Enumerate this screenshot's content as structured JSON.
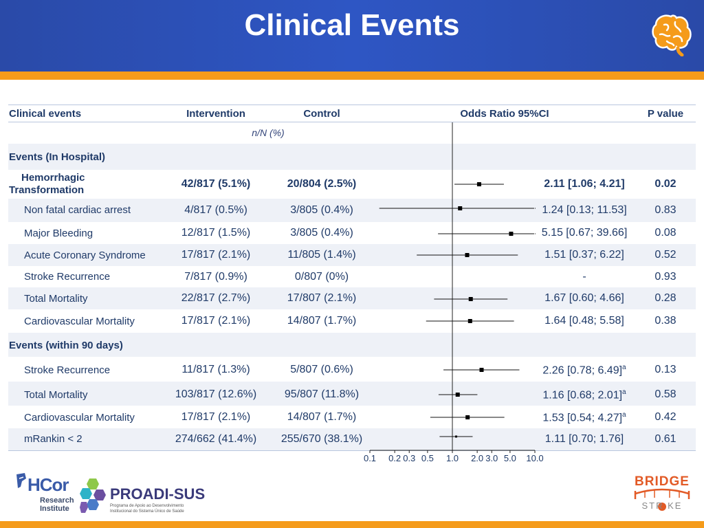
{
  "title": "Clinical Events",
  "headers": {
    "event": "Clinical events",
    "intervention": "Intervention",
    "control": "Control",
    "odds_ratio": "Odds Ratio 95%CI",
    "p_value": "P value",
    "subheader": "n/N (%)"
  },
  "sections": {
    "in_hospital": "Events (In Hospital)",
    "within_90": "Events (within 90 days)"
  },
  "rows": [
    {
      "label_line1": "Hemorrhagic",
      "label_line2": "Transformation",
      "intervention": "42/817 (5.1%)",
      "control": "20/804 (2.5%)",
      "or_text": "2.11 [1.06; 4.21]",
      "sup": "",
      "p": "0.02",
      "or": 2.11,
      "lo": 1.06,
      "hi": 4.21
    },
    {
      "label": "Non fatal cardiac arrest",
      "intervention": "4/817 (0.5%)",
      "control": "3/805 (0.4%)",
      "or_text": "1.24 [0.13; 11.53]",
      "sup": "",
      "p": "0.83",
      "or": 1.24,
      "lo": 0.13,
      "hi": 11.53
    },
    {
      "label": "Major Bleeding",
      "intervention": "12/817 (1.5%)",
      "control": "3/805 (0.4%)",
      "or_text": "5.15 [0.67; 39.66]",
      "sup": "",
      "p": "0.08",
      "or": 5.15,
      "lo": 0.67,
      "hi": 39.66
    },
    {
      "label": "Acute Coronary Syndrome",
      "intervention": "17/817 (2.1%)",
      "control": "11/805 (1.4%)",
      "or_text": "1.51 [0.37; 6.22]",
      "sup": "",
      "p": "0.52",
      "or": 1.51,
      "lo": 0.37,
      "hi": 6.22
    },
    {
      "label": "Stroke Recurrence",
      "intervention": "7/817 (0.9%)",
      "control": "0/807 (0%)",
      "or_text": "-",
      "sup": "",
      "p": "0.93"
    },
    {
      "label": "Total Mortality",
      "intervention": "22/817 (2.7%)",
      "control": "17/807 (2.1%)",
      "or_text": "1.67 [0.60; 4.66]",
      "sup": "",
      "p": "0.28",
      "or": 1.67,
      "lo": 0.6,
      "hi": 4.66
    },
    {
      "label": "Cardiovascular Mortality",
      "intervention": "17/817 (2.1%)",
      "control": "14/807 (1.7%)",
      "or_text": "1.64 [0.48; 5.58]",
      "sup": "",
      "p": "0.38",
      "or": 1.64,
      "lo": 0.48,
      "hi": 5.58
    },
    {
      "label": "Stroke Recurrence",
      "intervention": "11/817 (1.3%)",
      "control": "5/807 (0.6%)",
      "or_text": "2.26 [0.78; 6.49]",
      "sup": "a",
      "p": "0.13",
      "or": 2.26,
      "lo": 0.78,
      "hi": 6.49
    },
    {
      "label": "Total Mortality",
      "intervention": "103/817 (12.6%)",
      "control": "95/807 (11.8%)",
      "or_text": "1.16 [0.68; 2.01]",
      "sup": "a",
      "p": "0.58",
      "or": 1.16,
      "lo": 0.68,
      "hi": 2.01
    },
    {
      "label": "Cardiovascular Mortality",
      "intervention": "17/817 (2.1%)",
      "control": "14/807 (1.7%)",
      "or_text": "1.53 [0.54; 4.27]",
      "sup": "a",
      "p": "0.42",
      "or": 1.53,
      "lo": 0.54,
      "hi": 4.27
    },
    {
      "label": "mRankin < 2",
      "intervention": "274/662 (41.4%)",
      "control": "255/670 (38.1%)",
      "or_text": "1.11 [0.70; 1.76]",
      "sup": "",
      "p": "0.61",
      "or": 1.11,
      "lo": 0.7,
      "hi": 1.76
    }
  ],
  "axis_ticks": [
    "0.1",
    "0.2",
    "0.3",
    "0.5",
    "1.0",
    "2.0",
    "3.0",
    "5.0",
    "10.0"
  ],
  "logos": {
    "hcor": "HCor",
    "hcor_sub1": "Research",
    "hcor_sub2": "Institute",
    "proadi": "PROADI-SUS",
    "proadi_sub1": "Programa de Apoio ao Desenvolvimento",
    "proadi_sub2": "Institucional do Sistema Único de Saúde",
    "bridge": "BRIDGE",
    "stroke": "STR KE"
  },
  "colors": {
    "header_blue": "#2e56c4",
    "accent_orange": "#f59b1a",
    "text_navy": "#1f3a68"
  }
}
